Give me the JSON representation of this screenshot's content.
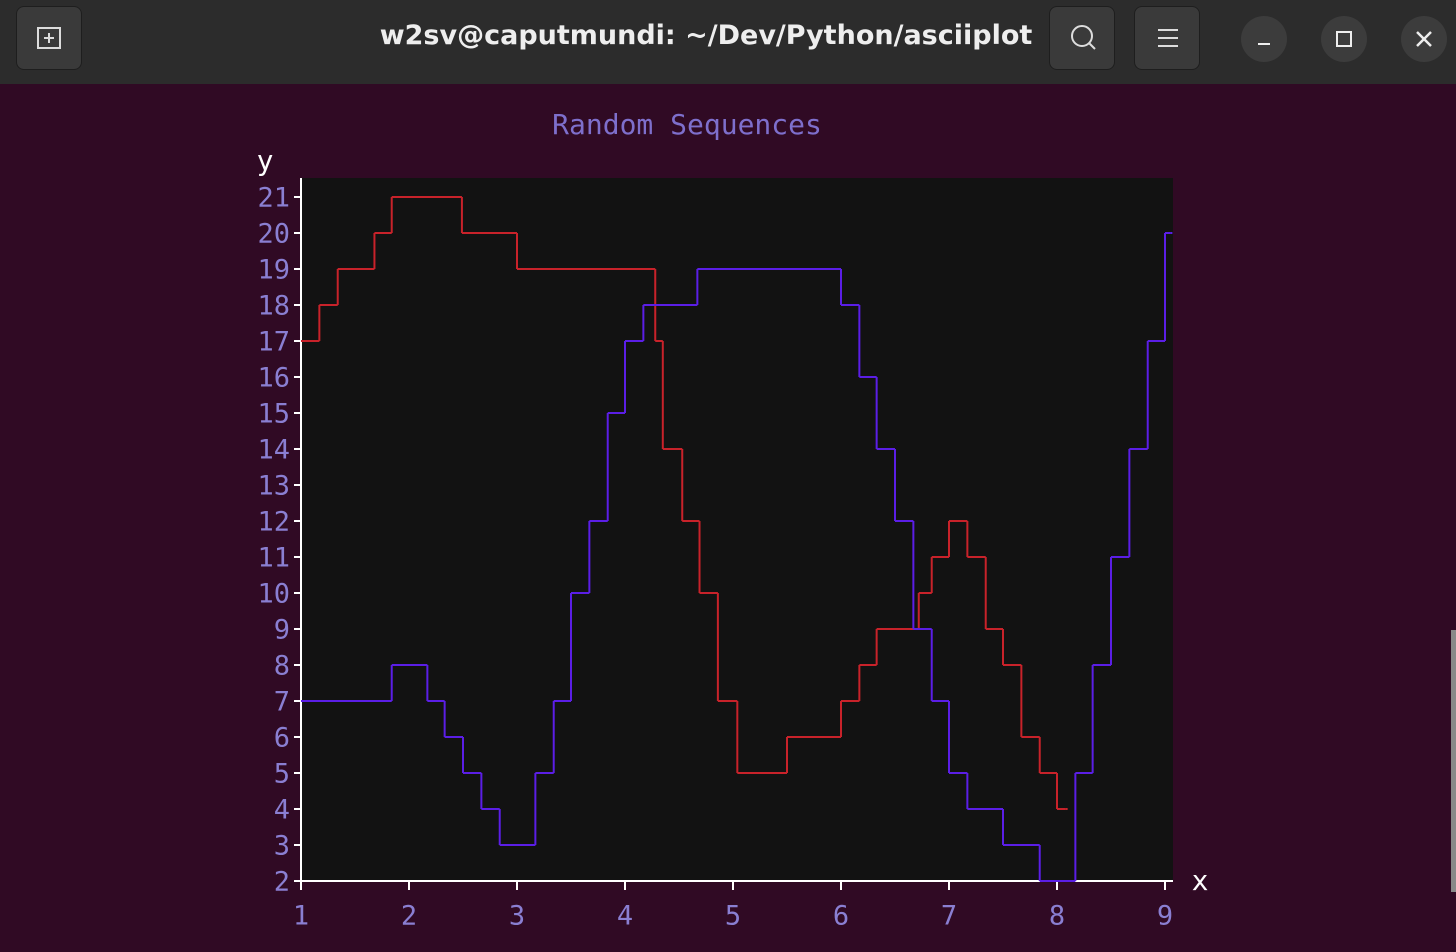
{
  "window": {
    "title": "w2sv@caputmundi: ~/Dev/Python/asciiplot"
  },
  "chart_data": {
    "type": "line",
    "title": "Random Sequences",
    "x_label": "x",
    "y_label": "y",
    "drawstyle": "steps-post",
    "xlim": [
      1,
      9
    ],
    "ylim": [
      2,
      21
    ],
    "xticks": [
      1,
      2,
      3,
      4,
      5,
      6,
      7,
      8,
      9
    ],
    "yticks": [
      2,
      3,
      4,
      5,
      6,
      7,
      8,
      9,
      10,
      11,
      12,
      13,
      14,
      15,
      16,
      17,
      18,
      19,
      20,
      21
    ],
    "series": [
      {
        "color": "#c8222a",
        "x": [
          1.0,
          1.17,
          1.34,
          1.68,
          1.84,
          2.49,
          3.0,
          4.28,
          4.35,
          4.53,
          4.69,
          4.86,
          5.04,
          5.5,
          6.0,
          6.17,
          6.33,
          6.72,
          6.84,
          7.0,
          7.17,
          7.34,
          7.5,
          7.67,
          7.84,
          8.0,
          8.08
        ],
        "values": [
          17,
          18,
          19,
          20,
          21,
          20,
          19,
          17,
          14,
          12,
          10,
          7,
          5,
          6,
          7,
          8,
          9,
          10,
          11,
          12,
          11,
          9,
          8,
          6,
          5,
          4,
          4
        ]
      },
      {
        "color": "#5b1ee6",
        "x": [
          1.0,
          1.84,
          2.17,
          2.33,
          2.5,
          2.67,
          2.84,
          3.17,
          3.34,
          3.5,
          3.67,
          3.84,
          4.0,
          4.17,
          4.67,
          6.0,
          6.17,
          6.33,
          6.5,
          6.67,
          6.84,
          7.0,
          7.17,
          7.5,
          7.84,
          8.17,
          8.33,
          8.5,
          8.67,
          8.84,
          9.0,
          9.05
        ],
        "values": [
          7,
          8,
          7,
          6,
          5,
          4,
          3,
          5,
          7,
          10,
          12,
          15,
          17,
          18,
          19,
          18,
          16,
          14,
          12,
          9,
          7,
          5,
          4,
          3,
          2,
          5,
          8,
          11,
          14,
          17,
          20,
          20
        ]
      }
    ]
  }
}
